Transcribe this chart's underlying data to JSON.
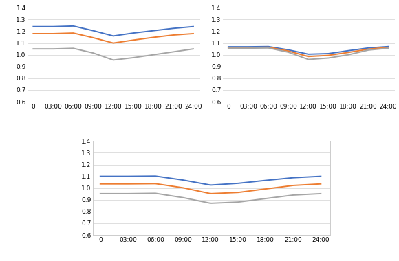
{
  "x_labels": [
    "0",
    "03:00",
    "06:00",
    "09:00",
    "12:00",
    "15:00",
    "18:00",
    "21:00",
    "24:00"
  ],
  "x_values": [
    0,
    3,
    6,
    9,
    12,
    15,
    18,
    21,
    24
  ],
  "ylim": [
    0.6,
    1.4
  ],
  "yticks": [
    0.6,
    0.7,
    0.8,
    0.9,
    1.0,
    1.1,
    1.2,
    1.3,
    1.4
  ],
  "color_blue": "#4472C4",
  "color_orange": "#ED7D31",
  "color_gray": "#A5A5A5",
  "linewidth": 1.4,
  "chart1": {
    "blue": [
      1.24,
      1.24,
      1.245,
      1.205,
      1.16,
      1.185,
      1.205,
      1.225,
      1.24
    ],
    "orange": [
      1.18,
      1.18,
      1.185,
      1.145,
      1.1,
      1.125,
      1.148,
      1.168,
      1.18
    ],
    "gray": [
      1.05,
      1.05,
      1.055,
      1.015,
      0.955,
      0.975,
      1.0,
      1.025,
      1.05
    ]
  },
  "chart2": {
    "blue": [
      1.068,
      1.068,
      1.07,
      1.042,
      1.005,
      1.01,
      1.035,
      1.058,
      1.07
    ],
    "orange": [
      1.062,
      1.062,
      1.064,
      1.032,
      0.985,
      0.995,
      1.02,
      1.048,
      1.063
    ],
    "gray": [
      1.056,
      1.056,
      1.058,
      1.022,
      0.96,
      0.972,
      1.0,
      1.04,
      1.056
    ]
  },
  "chart3": {
    "blue": [
      1.1,
      1.1,
      1.102,
      1.068,
      1.025,
      1.04,
      1.065,
      1.088,
      1.1
    ],
    "orange": [
      1.035,
      1.035,
      1.037,
      1.002,
      0.952,
      0.962,
      0.992,
      1.022,
      1.035
    ],
    "gray": [
      0.952,
      0.952,
      0.955,
      0.918,
      0.87,
      0.88,
      0.91,
      0.94,
      0.952
    ]
  },
  "background_color": "#ffffff",
  "grid_color": "#d9d9d9",
  "spine_color": "#cccccc",
  "tick_fontsize": 6.5
}
